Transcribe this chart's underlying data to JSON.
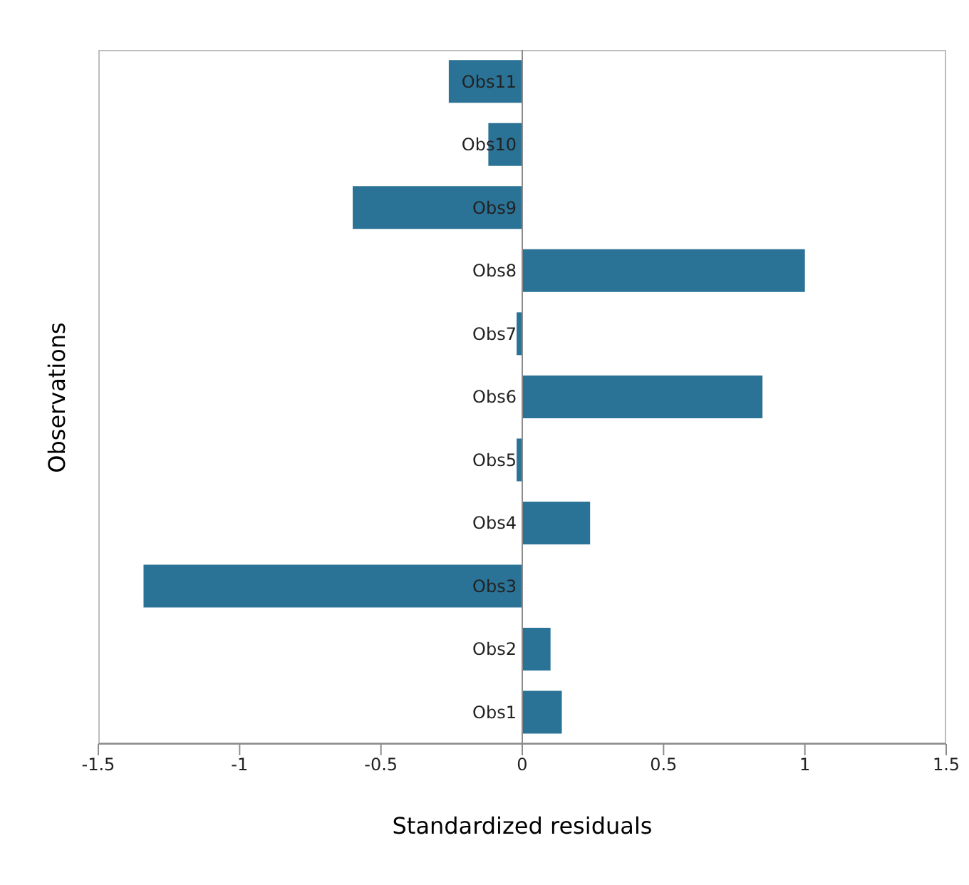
{
  "chart_data": {
    "type": "bar",
    "orientation": "horizontal",
    "xlabel": "Standardized residuals",
    "ylabel": "Observations",
    "categories": [
      "Obs11",
      "Obs10",
      "Obs9",
      "Obs8",
      "Obs7",
      "Obs6",
      "Obs5",
      "Obs4",
      "Obs3",
      "Obs2",
      "Obs1"
    ],
    "values": [
      -0.26,
      -0.12,
      -0.6,
      1.0,
      -0.02,
      0.85,
      -0.02,
      0.24,
      -1.34,
      0.1,
      0.14
    ],
    "color": "#2a7296",
    "xlim": [
      -1.5,
      1.5
    ],
    "xticks": [
      -1.5,
      -1,
      -0.5,
      0,
      0.5,
      1,
      1.5
    ]
  }
}
